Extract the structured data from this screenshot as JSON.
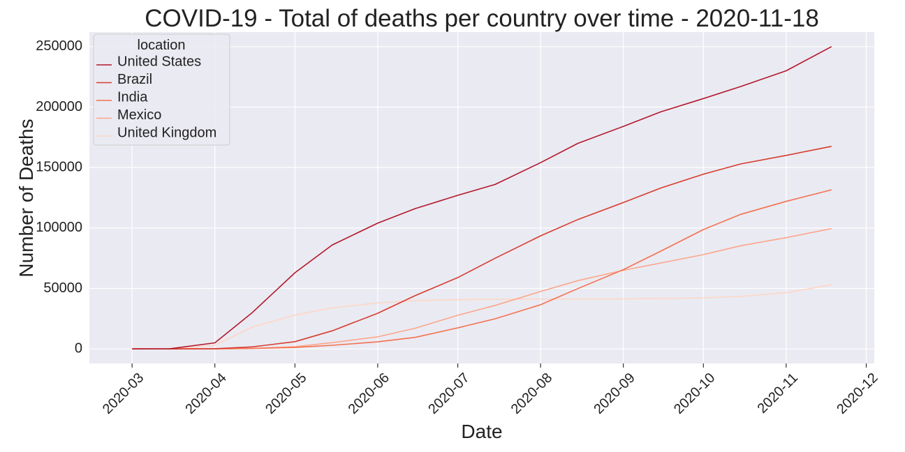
{
  "chart_data": {
    "type": "line",
    "title": "COVID-19 - Total of deaths per country over time - 2020-11-18",
    "xlabel": "Date",
    "ylabel": "Number of Deaths",
    "x_ticks": [
      "2020-03",
      "2020-04",
      "2020-05",
      "2020-06",
      "2020-07",
      "2020-08",
      "2020-09",
      "2020-10",
      "2020-11",
      "2020-12"
    ],
    "y_ticks": [
      0,
      50000,
      100000,
      150000,
      200000,
      250000
    ],
    "xlim": [
      "2020-02-14",
      "2020-12-04"
    ],
    "ylim": [
      -12000,
      262000
    ],
    "grid": true,
    "legend": {
      "title": "location",
      "position": "top-left"
    },
    "x": [
      "2020-03-01",
      "2020-03-15",
      "2020-04-01",
      "2020-04-15",
      "2020-05-01",
      "2020-05-15",
      "2020-06-01",
      "2020-06-15",
      "2020-07-01",
      "2020-07-15",
      "2020-08-01",
      "2020-08-15",
      "2020-09-01",
      "2020-09-15",
      "2020-10-01",
      "2020-10-15",
      "2020-11-01",
      "2020-11-18"
    ],
    "series": [
      {
        "name": "United States",
        "color": "#b2182b",
        "values": [
          0,
          100,
          5000,
          30000,
          63000,
          86000,
          104000,
          116000,
          127000,
          136000,
          154000,
          170000,
          184000,
          196000,
          207000,
          217000,
          230000,
          250000
        ]
      },
      {
        "name": "Brazil",
        "color": "#d73b2e",
        "values": [
          0,
          0,
          200,
          1700,
          6000,
          15000,
          29500,
          44000,
          59000,
          75000,
          93500,
          107000,
          121000,
          133000,
          144500,
          153000,
          160000,
          167500
        ]
      },
      {
        "name": "India",
        "color": "#f4704e",
        "values": [
          0,
          0,
          50,
          400,
          1200,
          3000,
          5800,
          9500,
          17400,
          24900,
          36500,
          49900,
          65500,
          80800,
          98700,
          111300,
          122000,
          131600
        ]
      },
      {
        "name": "Mexico",
        "color": "#fca68a",
        "values": [
          0,
          0,
          40,
          400,
          1800,
          5200,
          10000,
          17100,
          27800,
          36000,
          47500,
          56500,
          65000,
          71000,
          78000,
          85300,
          92000,
          99500
        ]
      },
      {
        "name": "United Kingdom",
        "color": "#fdd7c6",
        "values": [
          0,
          30,
          3000,
          18000,
          28000,
          34000,
          38000,
          40000,
          40700,
          41000,
          41200,
          41300,
          41400,
          41600,
          42200,
          43400,
          46500,
          53000
        ]
      }
    ]
  }
}
